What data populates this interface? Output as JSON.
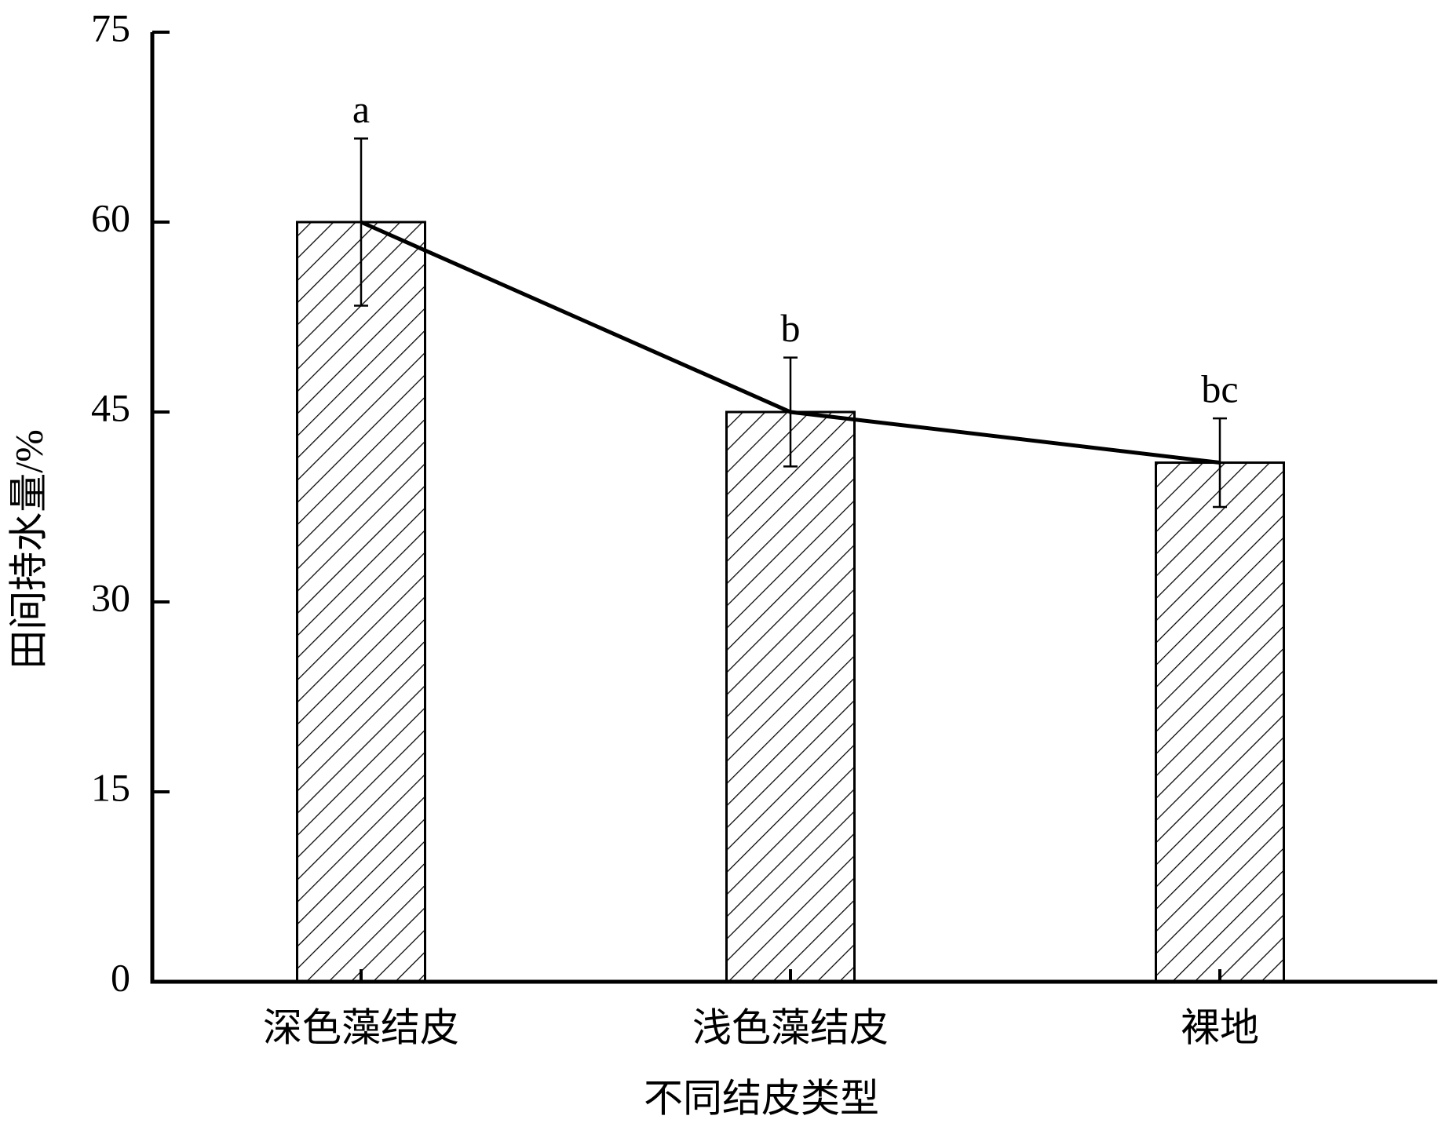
{
  "chart_data": {
    "type": "bar",
    "x_label": "不同结皮类型",
    "y_label": "田间持水量/%",
    "categories": [
      "深色藻结皮",
      "浅色藻结皮",
      "裸地"
    ],
    "series": [
      {
        "values": [
          60,
          45,
          41
        ],
        "errors": [
          6.6,
          4.3,
          3.5
        ],
        "color": "#000000"
      }
    ],
    "annotations": [
      "a",
      "b",
      "bc"
    ],
    "ylim": [
      0,
      75
    ],
    "yticks": [
      0,
      15,
      30,
      45,
      60,
      75
    ],
    "line_overlay": true,
    "grid": false
  }
}
